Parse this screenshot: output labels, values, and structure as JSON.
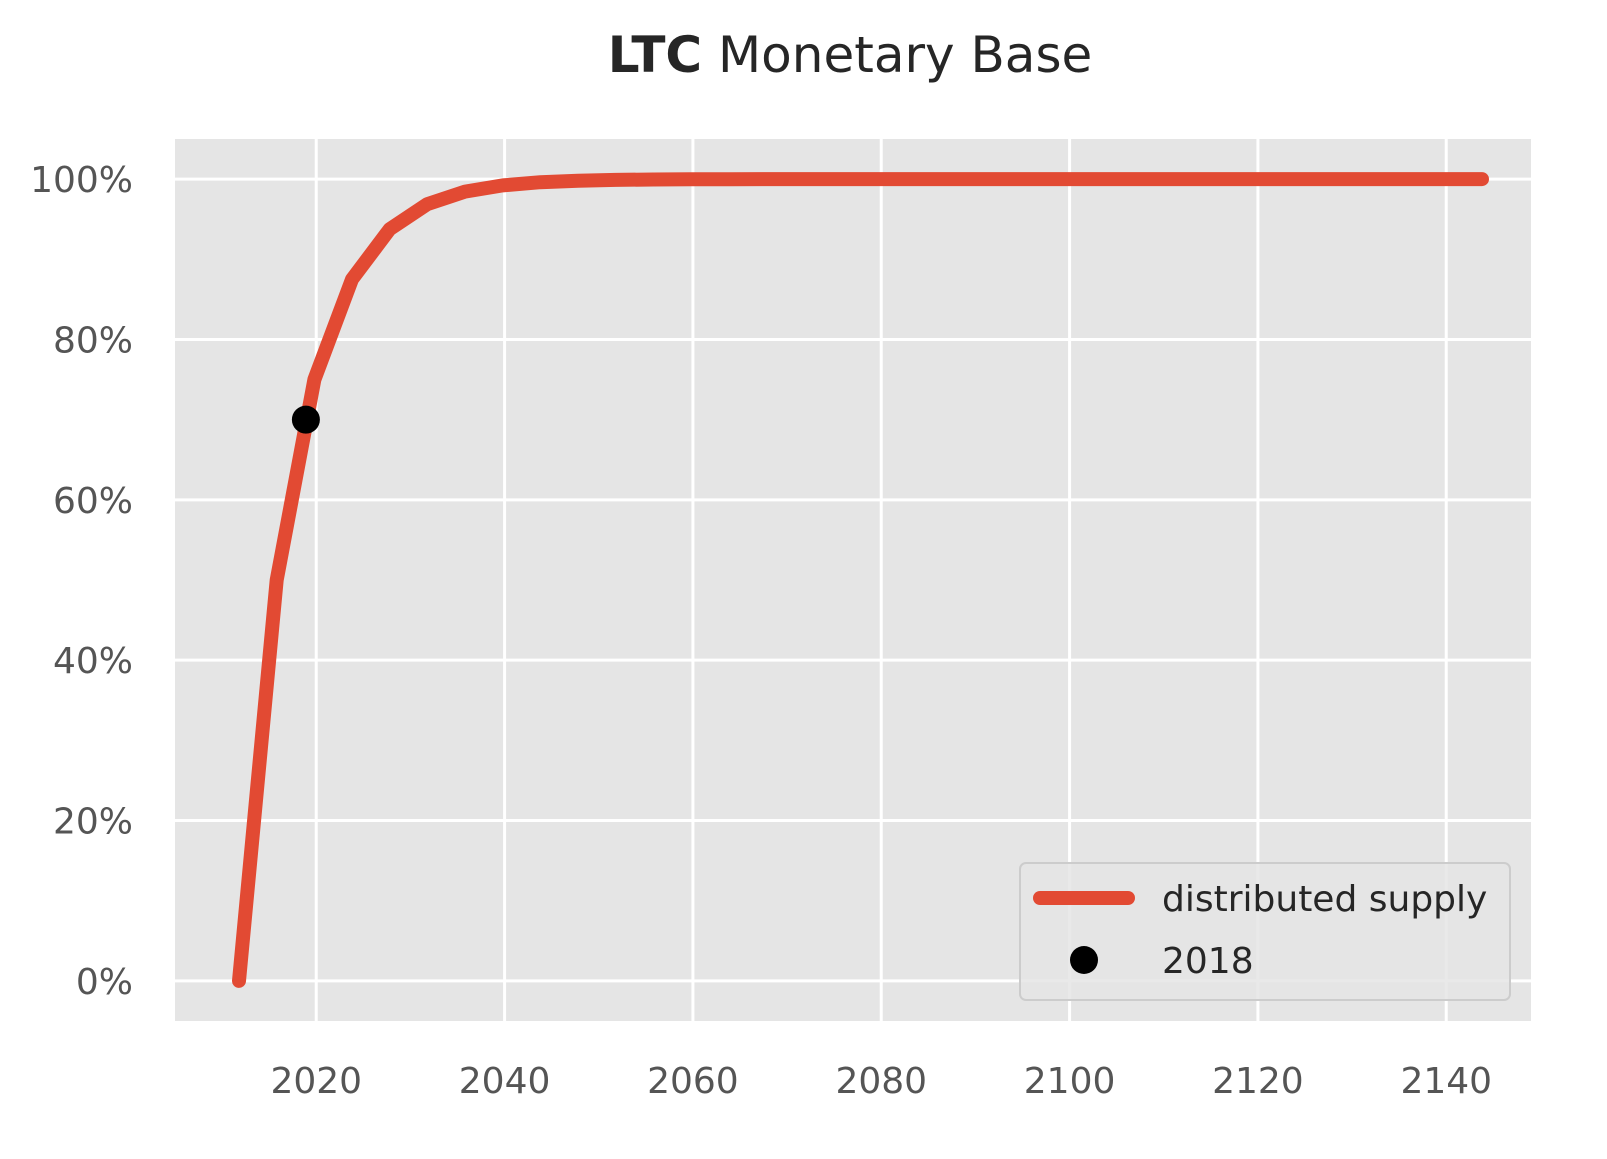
{
  "chart_data": {
    "type": "line",
    "title": {
      "bold": "LTC",
      "rest": "Monetary Base"
    },
    "xlabel": "",
    "ylabel": "",
    "xlim": [
      2005,
      2149
    ],
    "ylim": [
      -0.05,
      1.05
    ],
    "x_ticks": [
      2020,
      2040,
      2060,
      2080,
      2100,
      2120,
      2140
    ],
    "x_tick_labels": [
      "2020",
      "2040",
      "2060",
      "2080",
      "2100",
      "2120",
      "2140"
    ],
    "y_ticks": [
      0,
      0.2,
      0.4,
      0.6,
      0.8,
      1.0
    ],
    "y_tick_labels": [
      "0%",
      "20%",
      "40%",
      "60%",
      "80%",
      "100%"
    ],
    "grid": true,
    "legend_position": "lower-right",
    "series": [
      {
        "name": "distributed supply",
        "kind": "line",
        "color": "#E24A33",
        "x": [
          2011.8,
          2015.8,
          2019.8,
          2023.8,
          2027.8,
          2031.8,
          2035.8,
          2039.8,
          2043.8,
          2047.8,
          2051.8,
          2055.8,
          2059.8,
          2063.8,
          2067.8,
          2071.8,
          2143.8
        ],
        "y": [
          0,
          0.5,
          0.75,
          0.875,
          0.9375,
          0.96875,
          0.984375,
          0.9921875,
          0.99609375,
          0.998046875,
          0.9990234,
          0.9995117,
          0.9997559,
          0.9998779,
          0.999939,
          0.9999695,
          1.0
        ]
      },
      {
        "name": "2018",
        "kind": "point",
        "color": "#000000",
        "x": [
          2018.9
        ],
        "y": [
          0.7
        ]
      }
    ]
  },
  "colors": {
    "plot_background": "#E5E5E5",
    "grid": "#FFFFFF",
    "line": "#E24A33",
    "marker": "#000000"
  }
}
